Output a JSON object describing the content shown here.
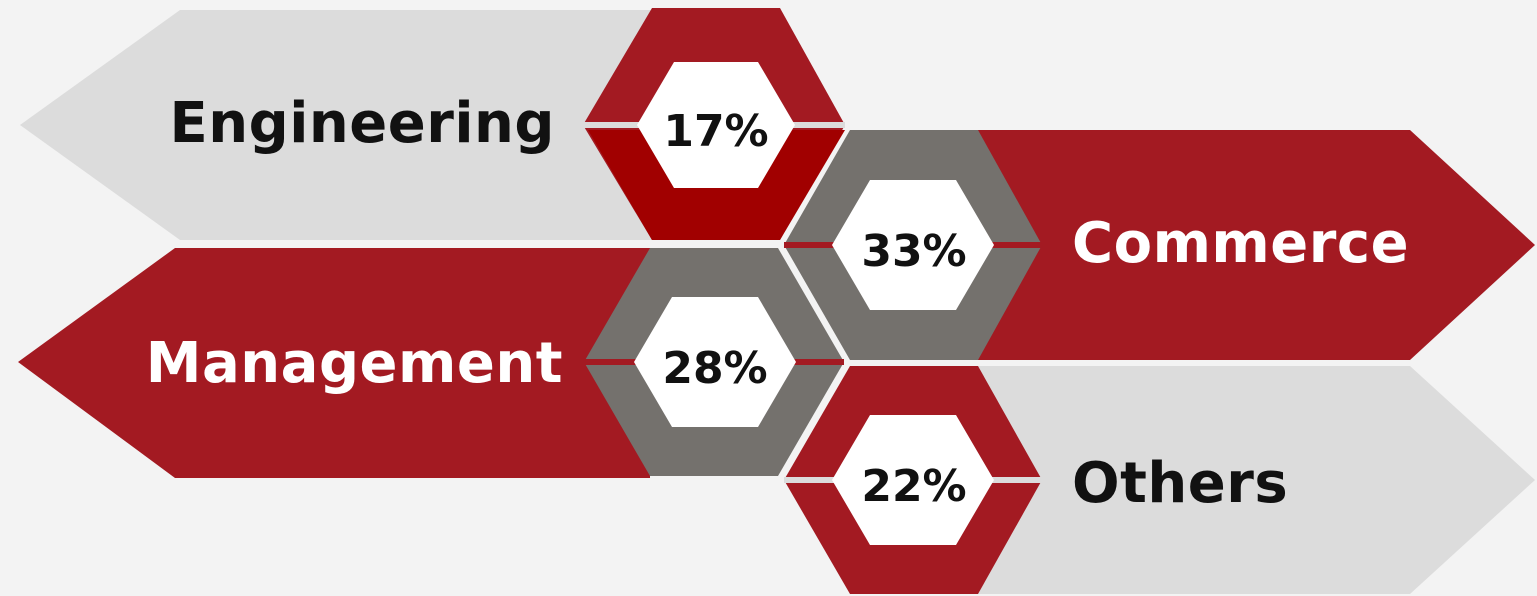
{
  "colors": {
    "background": "#f3f3f3",
    "red": "#a31a22",
    "dark_red": "#a10000",
    "gray": "#74716d",
    "light_gray": "#dcdcdc",
    "white": "#ffffff",
    "text_dark": "#111111"
  },
  "segments": [
    {
      "label": "Engineering",
      "percent": "17%",
      "value": 17,
      "arrow_color": "light_gray",
      "hex_color": "red",
      "text_color": "text_dark",
      "direction": "left"
    },
    {
      "label": "Commerce",
      "percent": "33%",
      "value": 33,
      "arrow_color": "red",
      "hex_color": "gray",
      "text_color": "white",
      "direction": "right"
    },
    {
      "label": "Management",
      "percent": "28%",
      "value": 28,
      "arrow_color": "red",
      "hex_color": "gray",
      "text_color": "white",
      "direction": "left"
    },
    {
      "label": "Others",
      "percent": "22%",
      "value": 22,
      "arrow_color": "light_gray",
      "hex_color": "red",
      "text_color": "text_dark",
      "direction": "right"
    }
  ]
}
